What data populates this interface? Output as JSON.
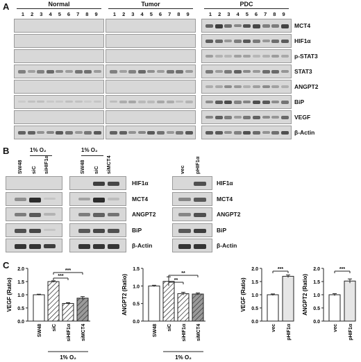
{
  "panelA": {
    "letter": "A",
    "groups": [
      {
        "name": "Normal",
        "lanes": [
          "1",
          "2",
          "3",
          "4",
          "5",
          "6",
          "7",
          "8",
          "9"
        ]
      },
      {
        "name": "Tumor",
        "lanes": [
          "1",
          "2",
          "3",
          "4",
          "5",
          "6",
          "7",
          "8",
          "9"
        ]
      },
      {
        "name": "PDC",
        "lanes": [
          "1",
          "2",
          "3",
          "4",
          "5",
          "6",
          "7",
          "8",
          "9"
        ]
      }
    ],
    "rows": [
      "MCT4",
      "HIF1α",
      "p-STAT3",
      "STAT3",
      "ANGPT2",
      "BiP",
      "VEGF",
      "β-Actin"
    ]
  },
  "panelB": {
    "letter": "B",
    "o2_label": "1% O₂",
    "blot1_lanes": [
      "SW48",
      "siC",
      "siHIF1α",
      "SW48",
      "siC",
      "siMCT4"
    ],
    "blot2_lanes": [
      "vec",
      "pHIF1α"
    ],
    "rows": [
      "HIF1α",
      "MCT4",
      "ANGPT2",
      "BiP",
      "β-Actin"
    ]
  },
  "panelC": {
    "letter": "C",
    "o2_label": "1% O₂",
    "chart_data": [
      {
        "type": "bar",
        "ylabel": "VEGF (Ratio)",
        "categories": [
          "SW48",
          "siC",
          "siHIF1α",
          "siMCT4"
        ],
        "values": [
          1.0,
          1.5,
          0.67,
          0.87
        ],
        "errors": [
          0.02,
          0.03,
          0.03,
          0.06
        ],
        "ylim": [
          0,
          2.0
        ],
        "yticks": [
          0.0,
          0.5,
          1.0,
          1.5,
          2.0
        ],
        "sig": [
          "***",
          "***"
        ]
      },
      {
        "type": "bar",
        "ylabel": "ANGPT2 (Ratio)",
        "categories": [
          "SW48",
          "siC",
          "siHIF1α",
          "siMCT4"
        ],
        "values": [
          1.0,
          1.13,
          0.78,
          0.77
        ],
        "errors": [
          0.02,
          0.13,
          0.04,
          0.03
        ],
        "ylim": [
          0,
          1.5
        ],
        "yticks": [
          0.0,
          0.5,
          1.0,
          1.5
        ],
        "sig": [
          "**",
          "**"
        ]
      },
      {
        "type": "bar",
        "ylabel": "VEGF (Ratio)",
        "categories": [
          "vec",
          "pHIF1α"
        ],
        "values": [
          1.0,
          1.7
        ],
        "errors": [
          0.03,
          0.05
        ],
        "ylim": [
          0,
          2.0
        ],
        "yticks": [
          0.0,
          0.5,
          1.0,
          1.5,
          2.0
        ],
        "sig": [
          "***"
        ]
      },
      {
        "type": "bar",
        "ylabel": "ANGPT2 (Ratio)",
        "categories": [
          "vec",
          "pHIF1α"
        ],
        "values": [
          1.0,
          1.52
        ],
        "errors": [
          0.04,
          0.08
        ],
        "ylim": [
          0,
          2.0
        ],
        "yticks": [
          0.0,
          0.5,
          1.0,
          1.5,
          2.0
        ],
        "sig": [
          "***"
        ]
      }
    ]
  }
}
